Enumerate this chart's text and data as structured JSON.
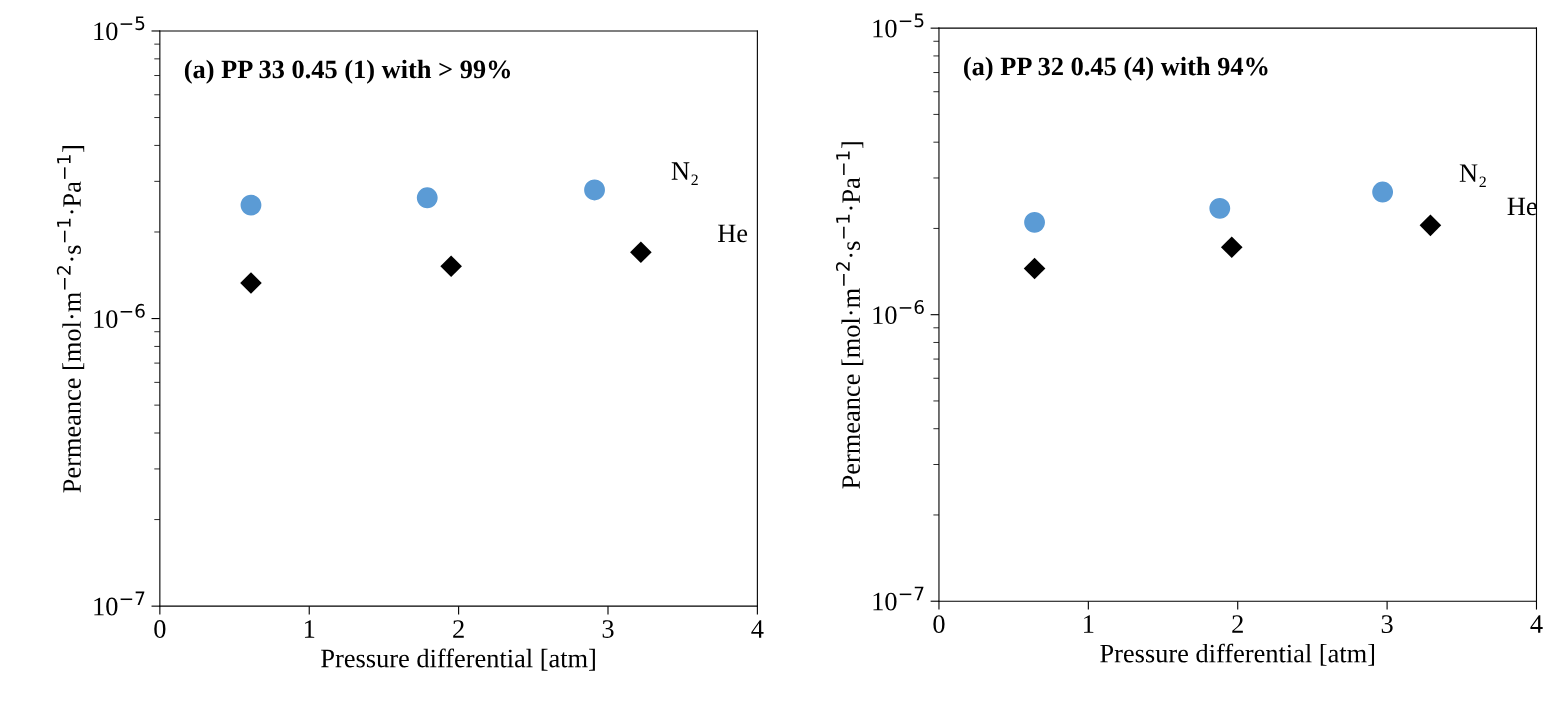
{
  "chart_data": [
    {
      "type": "scatter",
      "title": "(a) PP 33 0.45 (1) with > 99%",
      "xlabel": "Pressure differential [atm]",
      "ylabel": "Permeance [mol·m$^{−2}$·s$^{−1}$·Pa$^{−1}$]",
      "log": "y",
      "xlim": [
        0,
        4
      ],
      "xticks": [
        0,
        1,
        2,
        3,
        4
      ],
      "ylim": [
        1e-07,
        1e-05
      ],
      "yticks": [
        {
          "value": 1e-07,
          "label": "10$^{−7}$"
        },
        {
          "value": 1e-06,
          "label": "10$^{−6}$"
        },
        {
          "value": 1e-05,
          "label": "10$^{−5}$"
        }
      ],
      "grid": false,
      "legend": false,
      "series": [
        {
          "name": "N₂",
          "color": "#5b9bd5",
          "marker": "circle",
          "x": [
            0.61,
            1.79,
            2.91
          ],
          "values": [
            2.48e-06,
            2.63e-06,
            2.8e-06
          ]
        },
        {
          "name": "He",
          "color": "#000000",
          "marker": "diamond",
          "x": [
            0.61,
            1.95,
            3.22
          ],
          "values": [
            1.33e-06,
            1.52e-06,
            1.7e-06
          ]
        }
      ]
    },
    {
      "type": "scatter",
      "title": "(a) PP 32 0.45 (4) with 94%",
      "xlabel": "Pressure differential [atm]",
      "ylabel": "Permeance [mol·m$^{−2}$·s$^{−1}$·Pa$^{−1}$]",
      "log": "y",
      "xlim": [
        0,
        4
      ],
      "xticks": [
        0,
        1,
        2,
        3,
        4
      ],
      "ylim": [
        1e-07,
        1e-05
      ],
      "yticks": [
        {
          "value": 1e-07,
          "label": "10$^{−7}$"
        },
        {
          "value": 1e-06,
          "label": "10$^{−6}$"
        },
        {
          "value": 1e-05,
          "label": "10$^{−5}$"
        }
      ],
      "grid": false,
      "legend": false,
      "series": [
        {
          "name": "N₂",
          "color": "#5b9bd5",
          "marker": "circle",
          "x": [
            0.64,
            1.88,
            2.97
          ],
          "values": [
            2.1e-06,
            2.35e-06,
            2.68e-06
          ]
        },
        {
          "name": "He",
          "color": "#000000",
          "marker": "diamond",
          "x": [
            0.64,
            1.96,
            3.29
          ],
          "values": [
            1.45e-06,
            1.72e-06,
            2.05e-06
          ]
        }
      ]
    }
  ]
}
